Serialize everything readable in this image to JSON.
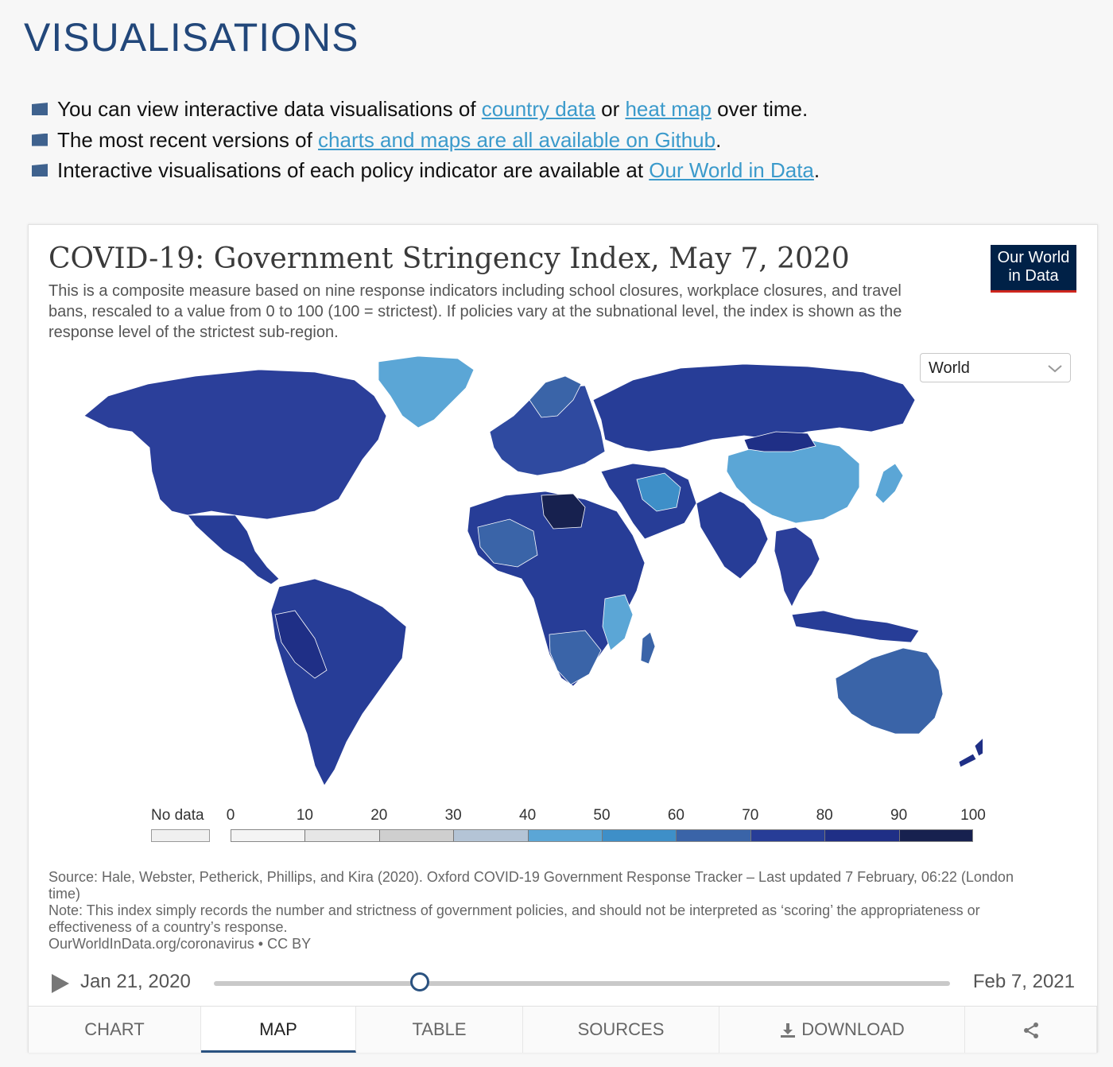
{
  "page": {
    "heading": "VISUALISATIONS",
    "intro": [
      {
        "pre": "You can view interactive data visualisations of ",
        "link1": "country data",
        "mid": " or ",
        "link2": "heat map",
        "post": " over time."
      },
      {
        "pre": "The most recent versions of ",
        "link1": "charts and maps are all available on Github",
        "post": "."
      },
      {
        "pre": "Interactive visualisations of each policy indicator are available at ",
        "link1": "Our World in Data",
        "post": "."
      }
    ]
  },
  "chart": {
    "title": "COVID-19: Government Stringency Index, May 7, 2020",
    "subtitle": "This is a composite measure based on nine response indicators including school closures, workplace closures, and travel bans, rescaled to a value from 0 to 100 (100 = strictest). If policies vary at the subnational level, the index is shown as the response level of the strictest sub-region.",
    "logo_line1": "Our World",
    "logo_line2": "in Data",
    "region_selector": "World",
    "source": "Source: Hale, Webster, Petherick, Phillips, and Kira (2020). Oxford COVID-19 Government Response Tracker – Last updated 7 February, 06:22 (London time)",
    "note": "Note: This index simply records the number and strictness of government policies, and should not be interpreted as ‘scoring’ the appropriateness or effectiveness of a country’s response.",
    "credit": "OurWorldInData.org/coronavirus • CC BY"
  },
  "legend": {
    "no_data_label": "No data",
    "ticks": [
      "0",
      "10",
      "20",
      "30",
      "40",
      "50",
      "60",
      "70",
      "80",
      "90",
      "100"
    ],
    "colors": [
      "#f4f4f4",
      "#e6e6e6",
      "#cfcfcf",
      "#b4c4d6",
      "#5ba6d6",
      "#3e8fc8",
      "#3a64a8",
      "#273d97",
      "#1f2f86",
      "#17214f"
    ],
    "no_data_color": "#f0f0f0"
  },
  "timeline": {
    "start": "Jan 21, 2020",
    "end": "Feb 7, 2021",
    "selected": "May 7, 2020",
    "position": 0.28
  },
  "tabs": [
    {
      "label": "CHART",
      "icon": "",
      "active": false
    },
    {
      "label": "MAP",
      "icon": "",
      "active": true
    },
    {
      "label": "TABLE",
      "icon": "",
      "active": false
    },
    {
      "label": "SOURCES",
      "icon": "",
      "active": false
    },
    {
      "label": "DOWNLOAD",
      "icon": "download-icon",
      "active": false
    },
    {
      "label": "",
      "icon": "share-icon",
      "active": false
    }
  ]
}
